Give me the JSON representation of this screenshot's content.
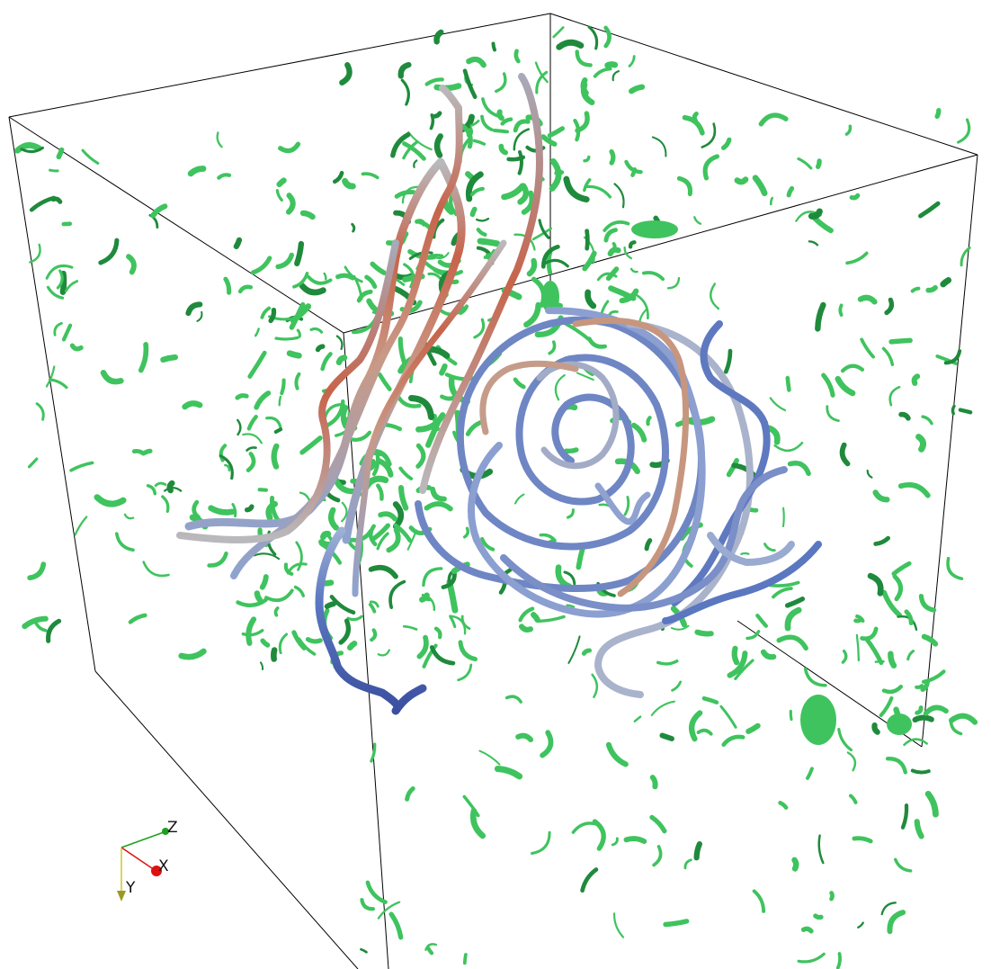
{
  "viewport": {
    "background": "#ffffff",
    "outline_color": "#000000"
  },
  "isosurfaces": {
    "color": "#3fc35e",
    "dark_color": "#1f8a3c"
  },
  "streamlines": {
    "colors": [
      "#3b4fa0",
      "#5a77c0",
      "#8ea3cf",
      "#b9b9bd",
      "#c89a87",
      "#c7644b"
    ]
  },
  "orientation_axes": {
    "labels": {
      "x": "X",
      "y": "Y",
      "z": "Z"
    },
    "colors": {
      "x": "#e01010",
      "y": "#c8c82a",
      "z": "#1ea01e"
    }
  }
}
